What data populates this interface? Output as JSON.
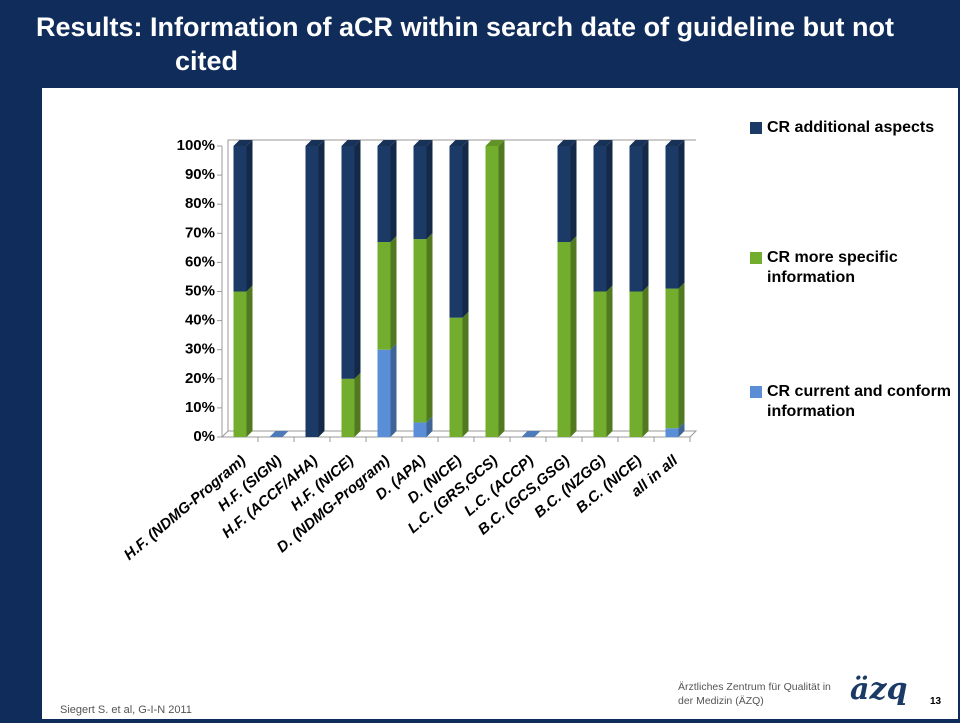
{
  "chart_data": {
    "type": "stacked_bar",
    "title": "Results: Information of aCR within search date of guideline but not cited",
    "categories": [
      "H.F. (NDMG-Program)",
      "H.F. (SIGN)",
      "H.F. (ACCF/AHA)",
      "H.F. (NICE)",
      "D. (NDMG-Program)",
      "D. (APA)",
      "D. (NICE)",
      "L.C. (GRS,GCS)",
      "L.C. (ACCP)",
      "B.C. (GCS,GSG)",
      "B.C. (NZGG)",
      "B.C. (NICE)",
      "all in all"
    ],
    "series": [
      {
        "name": "CR current and conform information",
        "color": "#5a8fd8",
        "values": [
          0,
          0,
          0,
          0,
          30,
          5,
          0,
          0,
          0,
          0,
          0,
          0,
          3
        ]
      },
      {
        "name": "CR more specific information",
        "color": "#72ad2e",
        "values": [
          50,
          0,
          0,
          20,
          37,
          63,
          41,
          100,
          0,
          67,
          50,
          50,
          48
        ]
      },
      {
        "name": "CR additional aspects",
        "color": "#1b3a66",
        "values": [
          50,
          0,
          100,
          80,
          33,
          32,
          59,
          0,
          0,
          33,
          50,
          50,
          49
        ]
      }
    ],
    "ylim": [
      0,
      100
    ],
    "yticks": [
      {
        "value": 0,
        "label": "0%"
      },
      {
        "value": 10,
        "label": "10%"
      },
      {
        "value": 20,
        "label": "20%"
      },
      {
        "value": 30,
        "label": "30%"
      },
      {
        "value": 40,
        "label": "40%"
      },
      {
        "value": 50,
        "label": "50%"
      },
      {
        "value": 60,
        "label": "60%"
      },
      {
        "value": 70,
        "label": "70%"
      },
      {
        "value": 80,
        "label": "80%"
      },
      {
        "value": 90,
        "label": "90%"
      },
      {
        "value": 100,
        "label": "100%"
      }
    ],
    "legend": "right"
  },
  "footer": {
    "citation": "Siegert S. et al, G-I-N 2011",
    "org": "Ärztliches Zentrum für Qualität in der Medizin (ÄZQ)",
    "logo": "äzq",
    "page": "13"
  }
}
